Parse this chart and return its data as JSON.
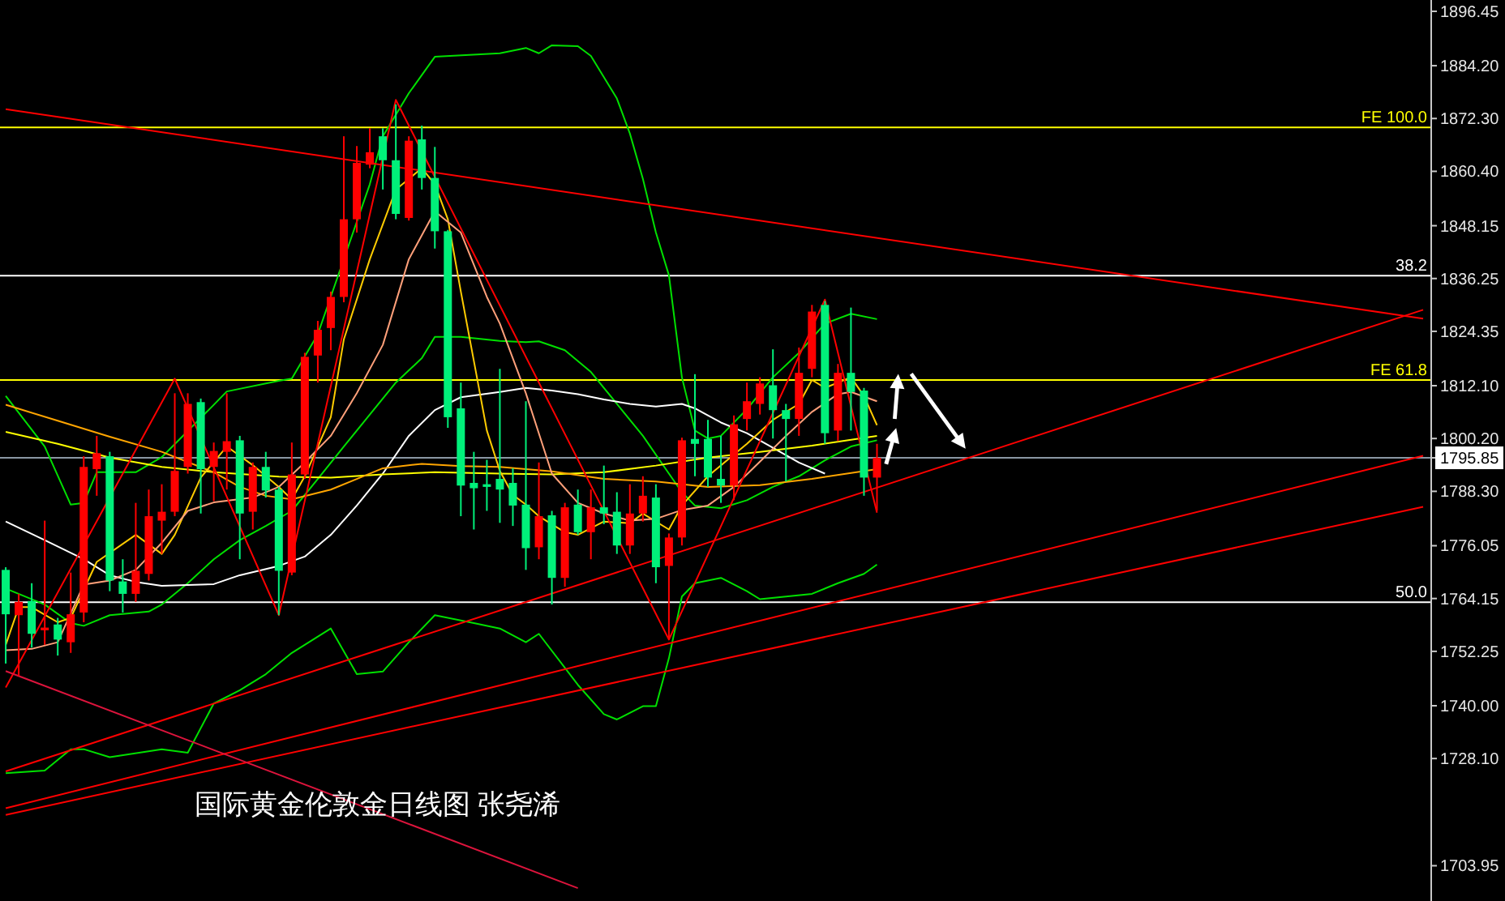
{
  "chart_data": {
    "type": "candlestick",
    "title": "国际黄金伦敦金日线图 张尧浠",
    "tick_labels": "y",
    "categories": [
      null,
      null,
      null,
      null,
      null,
      null,
      null,
      null,
      null,
      null,
      null,
      null,
      null,
      null,
      null,
      null,
      null,
      null,
      null,
      null,
      null,
      null,
      null,
      null,
      null,
      null,
      null,
      null,
      null,
      null,
      null,
      null,
      null,
      null,
      null,
      null,
      null,
      null,
      null,
      null,
      null,
      null,
      null,
      null,
      null,
      null,
      null,
      null,
      null,
      null,
      null,
      null,
      null,
      null,
      null,
      null,
      null,
      null,
      null,
      null,
      null,
      null,
      null,
      null,
      null,
      null,
      null,
      null,
      null,
      null,
      null,
      null,
      null,
      null,
      null,
      null,
      null,
      null,
      null,
      null,
      null,
      null,
      null,
      null,
      null,
      null,
      null,
      null,
      null,
      null,
      null,
      null,
      null,
      null,
      null,
      null,
      null,
      null,
      null,
      null,
      null,
      null,
      null,
      null,
      null,
      null,
      null,
      null,
      null,
      null
    ],
    "ylim": [
      1696,
      1899
    ],
    "yticks": [
      {
        "value": 1896.45,
        "label": "1896.45"
      },
      {
        "value": 1884.2,
        "label": "1884.20"
      },
      {
        "value": 1872.3,
        "label": "1872.30"
      },
      {
        "value": 1860.4,
        "label": "1860.40"
      },
      {
        "value": 1848.15,
        "label": "1848.15"
      },
      {
        "value": 1836.25,
        "label": "1836.25"
      },
      {
        "value": 1824.35,
        "label": "1824.35"
      },
      {
        "value": 1812.1,
        "label": "1812.10"
      },
      {
        "value": 1800.2,
        "label": "1800.20"
      },
      {
        "value": 1795.85,
        "label": "1795.85"
      },
      {
        "value": 1788.3,
        "label": "1788.30"
      },
      {
        "value": 1776.05,
        "label": "1776.05"
      },
      {
        "value": 1764.15,
        "label": "1764.15"
      },
      {
        "value": 1752.25,
        "label": "1752.25"
      },
      {
        "value": 1740.0,
        "label": "1740.00"
      },
      {
        "value": 1728.1,
        "label": "1728.10"
      },
      {
        "value": 1703.95,
        "label": "1703.95"
      }
    ],
    "annotations": [
      {
        "text": "FE 100.0",
        "y": 1870.3
      },
      {
        "text": "38.2",
        "y": 1836.9
      },
      {
        "text": "FE 61.8",
        "y": 1813.4
      },
      {
        "text": "50.0",
        "y": 1763.3
      }
    ],
    "ohlc": [
      [
        1770.6,
        1771.2,
        1749.5,
        1760.6
      ],
      [
        1760.4,
        1765.2,
        1746.7,
        1763.4
      ],
      [
        1763.6,
        1767.6,
        1753.1,
        1756.2
      ],
      [
        1757.0,
        1781.7,
        1753.7,
        1757.6
      ],
      [
        1758.3,
        1759.8,
        1751.3,
        1754.9
      ],
      [
        1754.3,
        1770.0,
        1751.9,
        1760.6
      ],
      [
        1761.0,
        1796.2,
        1758.8,
        1793.8
      ],
      [
        1793.3,
        1800.8,
        1787.3,
        1796.9
      ],
      [
        1796.2,
        1797.2,
        1765.8,
        1768.2
      ],
      [
        1768.0,
        1773.0,
        1761.0,
        1765.2
      ],
      [
        1765.2,
        1785.7,
        1763.4,
        1770.4
      ],
      [
        1769.7,
        1788.7,
        1768.2,
        1782.7
      ],
      [
        1781.7,
        1789.9,
        1774.2,
        1783.7
      ],
      [
        1783.7,
        1810.4,
        1782.7,
        1792.9
      ],
      [
        1793.8,
        1810.4,
        1792.3,
        1808.0
      ],
      [
        1808.4,
        1809.2,
        1783.3,
        1793.3
      ],
      [
        1793.8,
        1799.3,
        1786.1,
        1797.4
      ],
      [
        1797.2,
        1810.4,
        1788.7,
        1799.6
      ],
      [
        1799.8,
        1800.8,
        1773.0,
        1783.3
      ],
      [
        1783.7,
        1794.8,
        1779.7,
        1793.8
      ],
      [
        1793.8,
        1797.2,
        1786.9,
        1788.5
      ],
      [
        1788.7,
        1789.3,
        1760.4,
        1770.4
      ],
      [
        1770.0,
        1799.3,
        1769.4,
        1792.1
      ],
      [
        1792.1,
        1819.5,
        1791.1,
        1818.6
      ],
      [
        1818.9,
        1826.7,
        1812.8,
        1824.7
      ],
      [
        1825.1,
        1833.3,
        1820.1,
        1832.1
      ],
      [
        1832.1,
        1868.3,
        1830.9,
        1849.6
      ],
      [
        1849.6,
        1866.1,
        1846.6,
        1862.3
      ],
      [
        1861.9,
        1870.1,
        1861.1,
        1864.7
      ],
      [
        1868.3,
        1870.1,
        1856.3,
        1862.9
      ],
      [
        1862.9,
        1875.5,
        1849.6,
        1850.8
      ],
      [
        1849.9,
        1868.3,
        1849.3,
        1867.3
      ],
      [
        1867.6,
        1870.7,
        1856.3,
        1858.9
      ],
      [
        1858.9,
        1865.9,
        1843.0,
        1846.9
      ],
      [
        1846.9,
        1847.2,
        1802.6,
        1805.0
      ],
      [
        1807.0,
        1812.8,
        1782.7,
        1789.6
      ],
      [
        1790.2,
        1797.2,
        1779.7,
        1789.0
      ],
      [
        1789.9,
        1795.4,
        1783.9,
        1789.3
      ],
      [
        1791.1,
        1815.9,
        1781.2,
        1788.7
      ],
      [
        1790.2,
        1793.5,
        1780.5,
        1785.1
      ],
      [
        1785.3,
        1808.6,
        1770.6,
        1775.5
      ],
      [
        1775.7,
        1794.8,
        1773.0,
        1782.7
      ],
      [
        1782.9,
        1783.9,
        1762.8,
        1768.8
      ],
      [
        1768.8,
        1785.7,
        1766.8,
        1784.7
      ],
      [
        1785.3,
        1788.7,
        1778.5,
        1779.1
      ],
      [
        1779.1,
        1788.7,
        1773.0,
        1784.7
      ],
      [
        1784.7,
        1794.1,
        1780.9,
        1783.3
      ],
      [
        1783.7,
        1788.1,
        1774.2,
        1776.1
      ],
      [
        1776.1,
        1789.9,
        1774.2,
        1783.3
      ],
      [
        1783.3,
        1791.7,
        1781.5,
        1787.3
      ],
      [
        1786.9,
        1789.9,
        1767.6,
        1771.2
      ],
      [
        1771.5,
        1778.8,
        1754.9,
        1777.9
      ],
      [
        1777.9,
        1800.4,
        1776.1,
        1799.8
      ],
      [
        1800.1,
        1814.7,
        1791.7,
        1799.0
      ],
      [
        1800.1,
        1804.4,
        1789.3,
        1791.4
      ],
      [
        1791.1,
        1800.8,
        1785.7,
        1789.6
      ],
      [
        1789.6,
        1805.4,
        1786.3,
        1803.4
      ],
      [
        1804.6,
        1812.8,
        1802.0,
        1808.6
      ],
      [
        1808.0,
        1814.0,
        1805.6,
        1812.6
      ],
      [
        1812.2,
        1820.3,
        1800.2,
        1806.6
      ],
      [
        1806.6,
        1808.0,
        1790.5,
        1804.6
      ],
      [
        1804.6,
        1820.7,
        1800.8,
        1815.0
      ],
      [
        1815.9,
        1830.3,
        1814.0,
        1828.8
      ],
      [
        1830.3,
        1831.2,
        1799.0,
        1801.4
      ],
      [
        1802.0,
        1817.0,
        1799.6,
        1815.0
      ],
      [
        1815.0,
        1829.7,
        1802.0,
        1810.7
      ],
      [
        1811.0,
        1811.6,
        1787.3,
        1791.4
      ],
      [
        1791.4,
        1799.0,
        1783.9,
        1795.85
      ],
      null,
      null,
      null,
      null,
      null,
      null,
      null,
      null,
      null,
      null,
      null,
      null,
      null,
      null,
      null,
      null,
      null,
      null,
      null,
      null,
      null,
      null,
      null,
      null,
      null,
      null,
      null,
      null,
      null,
      null,
      null,
      null,
      null,
      null,
      null,
      null,
      null,
      null,
      null,
      null,
      null,
      null
    ],
    "colors": [
      "#00f07a",
      "#ff0000",
      "#00f07a",
      "#ff0000",
      "#00f07a",
      "#ff0000",
      "#ff0000",
      "#ff0000",
      "#00f07a",
      "#00f07a",
      "#ff0000",
      "#ff0000",
      "#ff0000",
      "#ff0000",
      "#ff0000",
      "#00f07a",
      "#ff0000",
      "#ff0000",
      "#00f07a",
      "#ff0000",
      "#00f07a",
      "#00f07a",
      "#ff0000",
      "#ff0000",
      "#ff0000",
      "#ff0000",
      "#ff0000",
      "#ff0000",
      "#ff0000",
      "#00f07a",
      "#00f07a",
      "#ff0000",
      "#00f07a",
      "#00f07a",
      "#00f07a",
      "#00f07a",
      "#00f07a",
      "#00f07a",
      "#00f07a",
      "#00f07a",
      "#00f07a",
      "#ff0000",
      "#00f07a",
      "#ff0000",
      "#00f07a",
      "#ff0000",
      "#00f07a",
      "#00f07a",
      "#ff0000",
      "#ff0000",
      "#00f07a",
      "#ff0000",
      "#ff0000",
      "#00f07a",
      "#00f07a",
      "#00f07a",
      "#ff0000",
      "#ff0000",
      "#ff0000",
      "#00f07a",
      "#00f07a",
      "#ff0000",
      "#ff0000",
      "#00f07a",
      "#ff0000",
      "#00f07a",
      "#00f07a",
      "#ff0000",
      null,
      null,
      null,
      null,
      null,
      null,
      null,
      null,
      null,
      null,
      null,
      null,
      null,
      null,
      null,
      null,
      null,
      null,
      null,
      null,
      null,
      null,
      null,
      null,
      null,
      null,
      null,
      null,
      null,
      null,
      null,
      null,
      null,
      null,
      null,
      null,
      null,
      null,
      null,
      null,
      null,
      null
    ],
    "ref_lines": [
      {
        "axis": "y",
        "value": 1870.3,
        "color": "#ffff00"
      },
      {
        "axis": "y",
        "value": 1836.9,
        "color": "#ffffff"
      },
      {
        "axis": "y",
        "value": 1813.4,
        "color": "#ffff00"
      },
      {
        "axis": "y",
        "value": 1795.85,
        "color": "#8a96a3"
      },
      {
        "axis": "y",
        "value": 1763.3,
        "color": "#ffffff"
      }
    ],
    "series": [
      {
        "type": "line",
        "color": "#00e000",
        "values": [
          1809.8,
          null,
          null,
          1798.4,
          null,
          1785.3,
          1785.7,
          1792.6,
          null,
          null,
          1792.6,
          null,
          1796.0,
          null,
          null,
          null,
          1807.8,
          1810.8,
          null,
          null,
          null,
          1813.2,
          1813.7,
          null,
          1823.7,
          null,
          null,
          null,
          1857.5,
          1868.3,
          null,
          1878.0,
          null,
          1886.2,
          null,
          null,
          null,
          null,
          1887.0,
          null,
          1888.2,
          1887.0,
          1888.8,
          null,
          1888.6,
          1886.4,
          null,
          1876.8,
          1868.9,
          1858.7,
          1846.6,
          1837.0,
          1814.0,
          1802.0,
          1800.2,
          1800.8,
          null,
          1806.8,
          null,
          1814.0,
          null,
          1819.5,
          null,
          1826.1,
          null,
          1828.3,
          null,
          1827.1,
          null,
          null,
          null,
          null,
          null,
          null,
          null,
          null,
          null,
          null,
          null,
          null,
          null,
          null,
          null,
          null,
          null,
          null,
          null,
          null,
          null,
          null,
          null,
          null,
          null,
          null,
          null,
          null,
          null,
          null,
          null,
          null,
          null,
          null,
          null,
          null,
          null,
          null,
          null,
          null,
          null,
          null
        ]
      },
      {
        "type": "line",
        "color": "#00e000",
        "values": [
          1766.4,
          null,
          null,
          1762.8,
          null,
          1758.6,
          1758.0,
          null,
          1760.4,
          null,
          null,
          1761.2,
          1762.8,
          null,
          1767.6,
          null,
          1773.0,
          null,
          1777.3,
          null,
          1780.5,
          null,
          1783.9,
          null,
          1791.1,
          null,
          1798.4,
          null,
          1805.6,
          null,
          1812.8,
          null,
          1818.3,
          1823.1,
          null,
          1823.1,
          null,
          null,
          1822.2,
          null,
          1821.9,
          1822.1,
          null,
          1820.1,
          null,
          1815.2,
          null,
          1808.0,
          null,
          1800.8,
          null,
          1792.3,
          1788.1,
          1785.1,
          null,
          1784.5,
          null,
          1786.3,
          null,
          1789.3,
          null,
          1791.7,
          null,
          1795.3,
          null,
          1798.4,
          null,
          1799.8,
          null,
          null,
          null,
          null,
          null,
          null,
          null,
          null,
          null,
          null,
          null,
          null,
          null,
          null,
          null,
          null,
          null,
          null,
          null,
          null,
          null,
          null,
          null,
          null,
          null,
          null,
          null,
          null,
          null,
          null,
          null,
          null,
          null,
          null,
          null,
          null,
          null,
          null,
          null,
          null,
          null,
          null
        ]
      },
      {
        "type": "line",
        "color": "#00e000",
        "values": [
          1724.8,
          null,
          null,
          1725.4,
          null,
          1730.2,
          1730.2,
          null,
          1728.4,
          null,
          null,
          null,
          1730.2,
          null,
          1729.4,
          null,
          1740.5,
          null,
          1743.5,
          null,
          1747.1,
          null,
          1751.9,
          null,
          null,
          1757.4,
          null,
          1747.1,
          null,
          1747.7,
          null,
          1754.3,
          null,
          1760.4,
          null,
          null,
          1758.6,
          null,
          1757.4,
          null,
          1754.3,
          1756.2,
          null,
          null,
          1744.7,
          null,
          1738.1,
          1736.9,
          null,
          1739.9,
          1739.9,
          1750.7,
          1764.6,
          1767.6,
          null,
          1768.8,
          null,
          1765.8,
          1764.0,
          null,
          1764.6,
          null,
          1765.2,
          null,
          1767.6,
          null,
          1769.7,
          1771.8,
          null,
          null,
          null,
          null,
          null,
          null,
          null,
          null,
          null,
          null,
          null,
          null,
          null,
          null,
          null,
          null,
          null,
          null,
          null,
          null,
          null,
          null,
          null,
          null,
          null,
          null,
          null,
          null,
          null,
          null,
          null,
          null,
          null,
          null,
          null,
          null,
          null,
          null,
          null,
          null,
          null,
          null
        ]
      },
      {
        "type": "line",
        "color": "#ffffff",
        "values": [
          1781.5,
          null,
          null,
          1777.3,
          null,
          null,
          1773.0,
          null,
          1769.4,
          null,
          1767.9,
          null,
          1767.0,
          null,
          null,
          null,
          1767.4,
          null,
          1769.4,
          null,
          null,
          1771.5,
          null,
          1773.6,
          null,
          1778.5,
          null,
          1785.1,
          null,
          1792.3,
          null,
          1800.8,
          null,
          1806.6,
          null,
          1809.5,
          null,
          null,
          1810.7,
          null,
          1811.6,
          null,
          1811.0,
          null,
          1810.2,
          null,
          1809.0,
          null,
          1808.0,
          null,
          1807.4,
          null,
          1808.0,
          1807.0,
          null,
          1803.8,
          null,
          1801.4,
          null,
          1798.1,
          null,
          1794.8,
          null,
          1792.3,
          null,
          null,
          null,
          null,
          null,
          null,
          null,
          null,
          null,
          null,
          null,
          null,
          null,
          null,
          null,
          null,
          null,
          null,
          null,
          null,
          null,
          null,
          null,
          null,
          null,
          null,
          null,
          null,
          null,
          null,
          null,
          null,
          null,
          null,
          null,
          null,
          null,
          null,
          null,
          null,
          null,
          null,
          null,
          null,
          null,
          null
        ]
      },
      {
        "type": "line",
        "color": "#ffff00",
        "values": [
          1801.7,
          null,
          null,
          null,
          1799.0,
          null,
          null,
          null,
          1795.9,
          null,
          null,
          null,
          1793.8,
          null,
          null,
          null,
          1792.6,
          null,
          null,
          null,
          null,
          1791.6,
          null,
          null,
          null,
          1791.4,
          null,
          null,
          null,
          1792.1,
          null,
          null,
          null,
          1792.6,
          null,
          null,
          null,
          null,
          1792.3,
          null,
          null,
          null,
          1792.1,
          null,
          null,
          null,
          1792.6,
          null,
          null,
          null,
          1794.1,
          null,
          null,
          null,
          1795.9,
          null,
          null,
          null,
          1797.2,
          null,
          null,
          null,
          1798.6,
          null,
          null,
          null,
          null,
          1800.8,
          null,
          null,
          null,
          null,
          null,
          null,
          null,
          null,
          null,
          null,
          null,
          null,
          null,
          null,
          null,
          null,
          null,
          null,
          null,
          null,
          null,
          null,
          null,
          null,
          null,
          null,
          null,
          null,
          null,
          null,
          null,
          null,
          null,
          null,
          null,
          null,
          null,
          null,
          null,
          null,
          null,
          null
        ]
      },
      {
        "type": "line",
        "color": "#ffa500",
        "values": [
          1807.8,
          null,
          null,
          null,
          1804.2,
          null,
          null,
          null,
          1800.6,
          null,
          null,
          null,
          1797.2,
          null,
          null,
          null,
          1792.6,
          null,
          1789.3,
          null,
          1787.3,
          null,
          1786.5,
          null,
          null,
          1788.7,
          null,
          1791.1,
          null,
          1793.5,
          null,
          null,
          1794.5,
          null,
          null,
          1794.0,
          null,
          null,
          1793.8,
          null,
          null,
          null,
          1792.8,
          null,
          null,
          null,
          1791.1,
          null,
          null,
          null,
          1790.5,
          null,
          null,
          null,
          1789.3,
          null,
          null,
          null,
          1789.7,
          null,
          null,
          null,
          1791.1,
          null,
          null,
          null,
          null,
          1793.3,
          null,
          null,
          null,
          null,
          null,
          null,
          null,
          null,
          null,
          null,
          null,
          null,
          null,
          null,
          null,
          null,
          null,
          null,
          null,
          null,
          null,
          null,
          null,
          null,
          null,
          null,
          null,
          null,
          null,
          null,
          null,
          null,
          null,
          null,
          null,
          null,
          null,
          null,
          null,
          null,
          null,
          null
        ]
      },
      {
        "type": "line",
        "color": "#ffcc00",
        "values": [
          1753.7,
          1762.2,
          1762.2,
          null,
          1758.8,
          1759.8,
          null,
          1772.4,
          null,
          null,
          1778.5,
          null,
          1774.2,
          1778.5,
          null,
          1791.4,
          null,
          1798.4,
          null,
          1794.2,
          null,
          1789.3,
          1786.5,
          1791.7,
          null,
          1805.0,
          1822.5,
          null,
          1840.6,
          null,
          1856.3,
          null,
          1861.1,
          1857.5,
          1849.6,
          1833.3,
          1817.7,
          1802.0,
          1792.9,
          1787.5,
          1785.3,
          1782.7,
          null,
          1779.1,
          1778.5,
          null,
          1781.5,
          null,
          1781.1,
          1783.3,
          null,
          1779.7,
          1785.1,
          null,
          1791.7,
          null,
          1796.6,
          1799.0,
          null,
          1804.4,
          null,
          1808.0,
          1813.4,
          1811.6,
          null,
          1814.0,
          1809.8,
          1803.2,
          null,
          null,
          null,
          null,
          null,
          null,
          null,
          null,
          null,
          null,
          null,
          null,
          null,
          null,
          null,
          null,
          null,
          null,
          null,
          null,
          null,
          null,
          null,
          null,
          null,
          null,
          null,
          null,
          null,
          null,
          null,
          null,
          null,
          null,
          null,
          null,
          null,
          null,
          null,
          null,
          null,
          null
        ]
      },
      {
        "type": "line",
        "color": "#ffa07a",
        "values": [
          1752.5,
          null,
          1752.8,
          null,
          1754.3,
          null,
          1767.3,
          null,
          1768.2,
          null,
          1770.6,
          null,
          1776.7,
          null,
          1783.9,
          null,
          1785.8,
          null,
          null,
          1786.9,
          null,
          1789.3,
          null,
          1794.8,
          null,
          1800.8,
          null,
          1810.4,
          null,
          1821.3,
          null,
          1840.6,
          null,
          1851.4,
          null,
          1846.6,
          null,
          1832.1,
          1826.1,
          null,
          1810.4,
          null,
          1792.3,
          null,
          1785.7,
          null,
          1783.3,
          null,
          1781.7,
          null,
          1782.1,
          null,
          1784.1,
          null,
          1785.1,
          null,
          1789.3,
          null,
          1795.0,
          null,
          1800.8,
          null,
          1806.2,
          null,
          1810.2,
          1810.7,
          null,
          1808.6,
          null,
          null,
          null,
          null,
          null,
          null,
          null,
          null,
          null,
          null,
          null,
          null,
          null,
          null,
          null,
          null,
          null,
          null,
          null,
          null,
          null,
          null,
          null,
          null,
          null,
          null,
          null,
          null,
          null,
          null,
          null,
          null,
          null,
          null,
          null,
          null,
          null,
          null,
          null,
          null,
          null,
          null
        ]
      },
      {
        "type": "line",
        "color": "#ff0000",
        "values": [
          1744.1,
          null,
          null,
          null,
          null,
          null,
          null,
          null,
          null,
          null,
          null,
          null,
          null,
          1813.7,
          null,
          null,
          null,
          null,
          null,
          null,
          null,
          1760.4,
          null,
          null,
          null,
          null,
          null,
          null,
          null,
          null,
          1876.5,
          null,
          null,
          null,
          null,
          null,
          null,
          null,
          null,
          null,
          null,
          null,
          null,
          null,
          null,
          null,
          null,
          null,
          null,
          null,
          null,
          1754.9,
          null,
          null,
          null,
          null,
          null,
          null,
          null,
          null,
          null,
          null,
          null,
          1831.5,
          null,
          null,
          null,
          1783.5,
          null,
          null,
          null,
          null,
          null,
          null,
          null,
          null,
          null,
          null,
          null,
          null,
          null,
          null,
          null,
          null,
          null,
          null,
          null,
          null,
          null,
          null,
          null,
          null,
          null,
          null,
          null,
          null,
          null,
          null,
          null,
          null,
          null,
          null,
          null,
          null,
          null,
          null,
          null,
          null,
          null,
          null
        ]
      },
      {
        "type": "line",
        "color": "#ff0000",
        "values": [
          1874.4,
          null,
          null,
          null,
          null,
          null,
          null,
          null,
          null,
          null,
          null,
          null,
          null,
          null,
          null,
          null,
          null,
          null,
          null,
          null,
          null,
          null,
          null,
          null,
          null,
          null,
          null,
          null,
          null,
          null,
          null,
          null,
          null,
          null,
          null,
          null,
          null,
          null,
          null,
          null,
          null,
          null,
          null,
          null,
          null,
          null,
          null,
          null,
          null,
          null,
          null,
          null,
          null,
          null,
          null,
          null,
          null,
          null,
          null,
          null,
          null,
          null,
          null,
          null,
          null,
          null,
          null,
          null,
          null,
          null,
          null,
          null,
          null,
          null,
          null,
          null,
          null,
          null,
          null,
          null,
          null,
          null,
          null,
          null,
          null,
          null,
          null,
          null,
          null,
          null,
          null,
          null,
          null,
          null,
          null,
          null,
          null,
          null,
          null,
          null,
          null,
          null,
          null,
          null,
          null,
          null,
          null,
          null,
          null,
          1827.2
        ]
      },
      {
        "type": "line",
        "color": "#ff0000",
        "values": [
          1725.2,
          null,
          null,
          null,
          null,
          null,
          null,
          null,
          null,
          null,
          null,
          null,
          null,
          null,
          null,
          null,
          null,
          null,
          null,
          null,
          null,
          null,
          null,
          null,
          null,
          null,
          null,
          null,
          null,
          null,
          null,
          null,
          null,
          null,
          null,
          null,
          null,
          null,
          null,
          null,
          null,
          null,
          null,
          null,
          null,
          null,
          null,
          null,
          null,
          null,
          null,
          null,
          null,
          null,
          null,
          null,
          null,
          null,
          null,
          null,
          null,
          null,
          null,
          null,
          null,
          null,
          null,
          null,
          null,
          null,
          null,
          null,
          null,
          null,
          null,
          null,
          null,
          null,
          null,
          null,
          null,
          null,
          null,
          null,
          null,
          null,
          null,
          null,
          null,
          null,
          null,
          null,
          null,
          null,
          null,
          null,
          null,
          null,
          null,
          null,
          null,
          null,
          null,
          null,
          null,
          null,
          null,
          null,
          null,
          1829.2
        ]
      },
      {
        "type": "line",
        "color": "#ff0000",
        "values": [
          1716.9,
          null,
          null,
          null,
          null,
          null,
          null,
          null,
          null,
          null,
          null,
          null,
          null,
          null,
          null,
          null,
          null,
          null,
          null,
          null,
          null,
          null,
          null,
          null,
          null,
          null,
          null,
          null,
          null,
          null,
          null,
          null,
          null,
          null,
          null,
          null,
          null,
          null,
          null,
          null,
          null,
          null,
          null,
          null,
          null,
          null,
          null,
          null,
          null,
          null,
          null,
          null,
          null,
          null,
          null,
          null,
          null,
          null,
          null,
          null,
          null,
          null,
          null,
          null,
          null,
          null,
          null,
          null,
          null,
          null,
          null,
          null,
          null,
          null,
          null,
          null,
          null,
          null,
          null,
          null,
          null,
          null,
          null,
          null,
          null,
          null,
          null,
          null,
          null,
          null,
          null,
          null,
          null,
          null,
          null,
          null,
          null,
          null,
          null,
          null,
          null,
          null,
          null,
          null,
          null,
          null,
          null,
          null,
          null,
          1796.3
        ]
      },
      {
        "type": "line",
        "color": "#ff0000",
        "values": [
          1715.4,
          null,
          null,
          null,
          null,
          null,
          null,
          null,
          null,
          null,
          null,
          null,
          null,
          null,
          null,
          null,
          null,
          null,
          null,
          null,
          null,
          null,
          null,
          null,
          null,
          null,
          null,
          null,
          null,
          null,
          null,
          null,
          null,
          null,
          null,
          null,
          null,
          null,
          null,
          null,
          null,
          null,
          null,
          null,
          null,
          null,
          null,
          null,
          null,
          null,
          null,
          null,
          null,
          null,
          null,
          null,
          null,
          null,
          null,
          null,
          null,
          null,
          null,
          null,
          null,
          null,
          null,
          null,
          null,
          null,
          null,
          null,
          null,
          null,
          null,
          null,
          null,
          null,
          null,
          null,
          null,
          null,
          null,
          null,
          null,
          null,
          null,
          null,
          null,
          null,
          null,
          null,
          null,
          null,
          null,
          null,
          null,
          null,
          null,
          null,
          null,
          null,
          null,
          null,
          null,
          null,
          null,
          null,
          null,
          1784.8
        ]
      },
      {
        "type": "line",
        "color": "#dc143c",
        "values": [
          1747.8,
          null,
          null,
          null,
          null,
          null,
          null,
          null,
          null,
          null,
          null,
          null,
          null,
          null,
          null,
          null,
          null,
          null,
          null,
          null,
          null,
          null,
          null,
          null,
          null,
          null,
          null,
          null,
          null,
          null,
          null,
          null,
          null,
          null,
          null,
          null,
          null,
          null,
          null,
          null,
          null,
          null,
          null,
          null,
          1698.9,
          null,
          null,
          null,
          null,
          null,
          null,
          null,
          null,
          null,
          null,
          null,
          null,
          null,
          null,
          null,
          null,
          null,
          null,
          null,
          null,
          null,
          null,
          null,
          null,
          null,
          null,
          null,
          null,
          null,
          null,
          null,
          null,
          null,
          null,
          null,
          null,
          null,
          null,
          null,
          null,
          null,
          null,
          null,
          null,
          null,
          null,
          null,
          null,
          null,
          null,
          null,
          null,
          null,
          null,
          null,
          null,
          null,
          null,
          null,
          null,
          null,
          null,
          null,
          null,
          null
        ]
      }
    ]
  }
}
